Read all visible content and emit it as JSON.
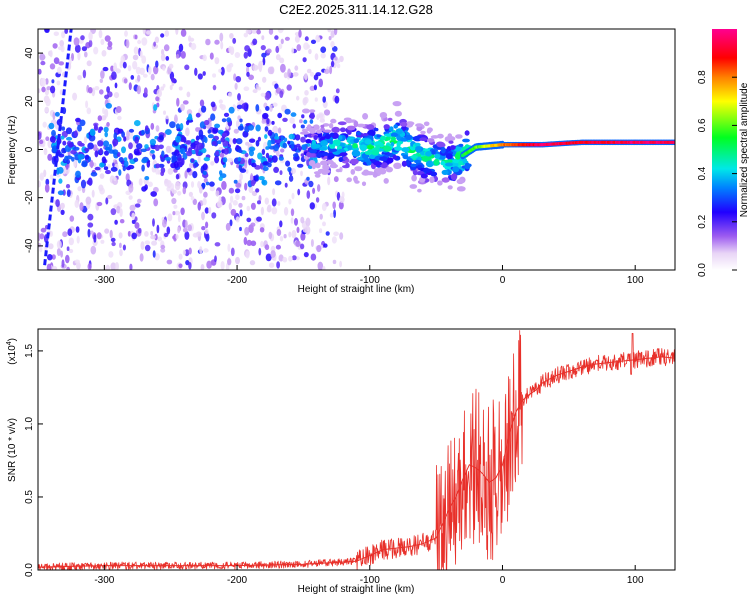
{
  "title": "C2E2.2025.311.14.12.G28",
  "chart_data": [
    {
      "type": "heatmap",
      "name": "spectrogram",
      "xlabel": "Height of straight line (km)",
      "ylabel": "Frequency (Hz)",
      "xlim": [
        -350,
        130
      ],
      "ylim": [
        -50,
        50
      ],
      "xticks": [
        -300,
        -200,
        -100,
        0,
        100
      ],
      "xtick_labels": [
        "-300",
        "-200",
        "-100",
        "0",
        "100"
      ],
      "yticks": [
        -40,
        -20,
        0,
        20,
        40
      ],
      "ytick_labels": [
        "-40",
        "-20",
        "0",
        "20",
        "40"
      ],
      "colorbar": {
        "label": "Normalized spectral amplitude",
        "range": [
          0,
          1
        ],
        "ticks": [
          0.0,
          0.2,
          0.4,
          0.6,
          0.8
        ],
        "tick_labels": [
          "0.0",
          "0.2",
          "0.4",
          "0.6",
          "0.8"
        ]
      },
      "features": {
        "diffuse_noise_region_km": [
          -350,
          -120
        ],
        "noisy_band_center_hz": 0,
        "noisy_band_half_width_hz": 10,
        "oblique_trace": {
          "x_km": [
            -345,
            -325
          ],
          "freq_hz": [
            -48,
            50
          ]
        },
        "tone_track": [
          {
            "x_km": -145,
            "freq_hz": 2,
            "amp": 0.35
          },
          {
            "x_km": -120,
            "freq_hz": 2,
            "amp": 0.45
          },
          {
            "x_km": -100,
            "freq_hz": 0,
            "amp": 0.5
          },
          {
            "x_km": -80,
            "freq_hz": 4,
            "amp": 0.5
          },
          {
            "x_km": -60,
            "freq_hz": -3,
            "amp": 0.5
          },
          {
            "x_km": -40,
            "freq_hz": -6,
            "amp": 0.45
          },
          {
            "x_km": -20,
            "freq_hz": 1,
            "amp": 0.6
          },
          {
            "x_km": 0,
            "freq_hz": 2,
            "amp": 0.8
          },
          {
            "x_km": 30,
            "freq_hz": 2,
            "amp": 0.95
          },
          {
            "x_km": 60,
            "freq_hz": 3,
            "amp": 0.9
          },
          {
            "x_km": 100,
            "freq_hz": 3,
            "amp": 0.95
          },
          {
            "x_km": 130,
            "freq_hz": 3,
            "amp": 0.95
          }
        ]
      }
    },
    {
      "type": "line",
      "name": "snr",
      "xlabel": "Height of straight line (km)",
      "ylabel": "SNR (10 * v/v)",
      "y_multiplier_label": "(x10",
      "y_multiplier_exp": "4",
      "y_multiplier_close": ")",
      "xlim": [
        -350,
        130
      ],
      "ylim": [
        0,
        1.65
      ],
      "xticks": [
        -300,
        -200,
        -100,
        0,
        100
      ],
      "xtick_labels": [
        "-300",
        "-200",
        "-100",
        "0",
        "100"
      ],
      "yticks": [
        0.0,
        0.5,
        1.0,
        1.5
      ],
      "ytick_labels": [
        "0.0",
        "0.5",
        "1.0",
        "1.5"
      ],
      "color": "#e8302a",
      "series": [
        {
          "name": "SNR envelope",
          "x": [
            -350,
            -300,
            -250,
            -200,
            -150,
            -110,
            -100,
            -90,
            -80,
            -70,
            -60,
            -50,
            -45,
            -40,
            -35,
            -30,
            -25,
            -20,
            -15,
            -10,
            -5,
            0,
            5,
            10,
            15,
            20,
            25,
            30,
            40,
            50,
            60,
            70,
            80,
            90,
            100,
            110,
            120,
            130
          ],
          "y": [
            0.02,
            0.03,
            0.03,
            0.03,
            0.04,
            0.06,
            0.1,
            0.14,
            0.15,
            0.16,
            0.18,
            0.22,
            0.32,
            0.42,
            0.5,
            0.62,
            0.72,
            0.7,
            0.66,
            0.6,
            0.63,
            0.72,
            0.92,
            1.08,
            1.16,
            1.2,
            1.23,
            1.28,
            1.33,
            1.36,
            1.39,
            1.41,
            1.42,
            1.43,
            1.44,
            1.45,
            1.46,
            1.45
          ]
        }
      ],
      "annotations": [
        {
          "x_km": 97,
          "y": 1.34,
          "note": "dip"
        },
        {
          "x_km": 97,
          "y": 1.62,
          "note": "spike"
        }
      ]
    }
  ],
  "accent": "#e8302a"
}
